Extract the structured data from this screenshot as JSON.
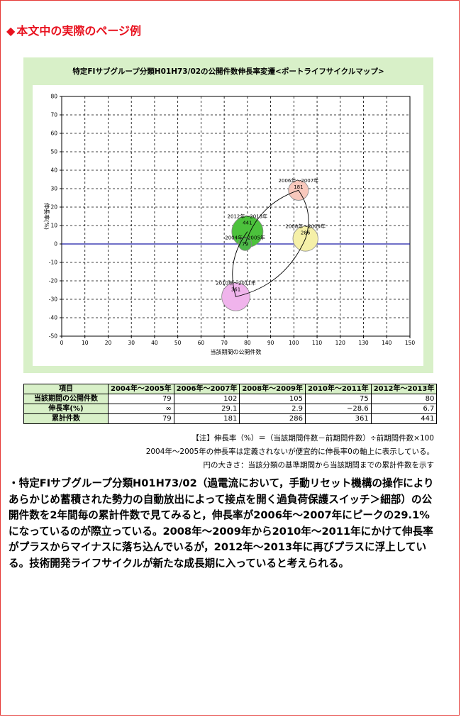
{
  "heading": {
    "icon": "diamond-icon",
    "text": "本文中の実際のページ例"
  },
  "chart_data": {
    "type": "bubble",
    "title": "特定FIサブグループ分類H01H73/02の公開件数伸長率変遷<ポートライフサイクルマップ>",
    "xlabel": "当該期間の公開件数",
    "ylabel": "伸長率(%)",
    "xlim": [
      0,
      150
    ],
    "ylim": [
      -50,
      80
    ],
    "xticks": [
      0,
      10,
      20,
      30,
      40,
      50,
      60,
      70,
      80,
      90,
      100,
      110,
      120,
      130,
      140,
      150
    ],
    "yticks": [
      80,
      70,
      60,
      50,
      40,
      30,
      20,
      10,
      0,
      -10,
      -20,
      -30,
      -40,
      -50
    ],
    "grid": true,
    "points": [
      {
        "label": "2004年～2005年",
        "x": 79,
        "y": 0,
        "size": 79,
        "size_label": "79",
        "color": "#4db848"
      },
      {
        "label": "2006年～2007年",
        "x": 102,
        "y": 29.1,
        "size": 181,
        "size_label": "181",
        "color": "#f8c8bc"
      },
      {
        "label": "2008年～2009年",
        "x": 105,
        "y": 2.9,
        "size": 286,
        "size_label": "286",
        "color": "#f5f0a8"
      },
      {
        "label": "2010年～2011年",
        "x": 75,
        "y": -28.6,
        "size": 361,
        "size_label": "361",
        "color": "#f0b4ec"
      },
      {
        "label": "2012年～2013年",
        "x": 80,
        "y": 6.7,
        "size": 441,
        "size_label": "441",
        "color": "#4cc23c"
      }
    ]
  },
  "table": {
    "header_label": "項目",
    "periods": [
      "2004年～2005年",
      "2006年～2007年",
      "2008年～2009年",
      "2010年～2011年",
      "2012年～2013年"
    ],
    "rows": [
      {
        "label": "当該期間の公開件数",
        "values": [
          "79",
          "102",
          "105",
          "75",
          "80"
        ]
      },
      {
        "label": "伸長率(%)",
        "values": [
          "∞",
          "29.1",
          "2.9",
          "−28.6",
          "6.7"
        ]
      },
      {
        "label": "累計件数",
        "values": [
          "79",
          "181",
          "286",
          "361",
          "441"
        ]
      }
    ]
  },
  "notes": [
    "【注】伸長率（%）＝（当該期間件数－前期間件数）÷前期間件数×100",
    "2004年～2005年の伸長率は定義されないが便宜的に伸長率0の軸上に表示している。",
    "円の大きさ：当該分類の基準期間から当該期間までの累計件数を示す"
  ],
  "body_text": "・特定FIサブグループ分類H01H73/02（過電流において，手動リセット機構の操作によりあらかじめ蓄積された勢力の自動放出によって接点を開く過負荷保護スイッチ＞細部）の公開件数を2年間毎の累計件数で見てみると，伸長率が2006年～2007年にピークの29.1%になっているのが際立っている。2008年～2009年から2010年～2011年にかけて伸長率がプラスからマイナスに落ち込んでいるが，2012年～2013年に再びプラスに浮上している。技術開発ライフサイクルが新たな成長期に入っていると考えられる。"
}
